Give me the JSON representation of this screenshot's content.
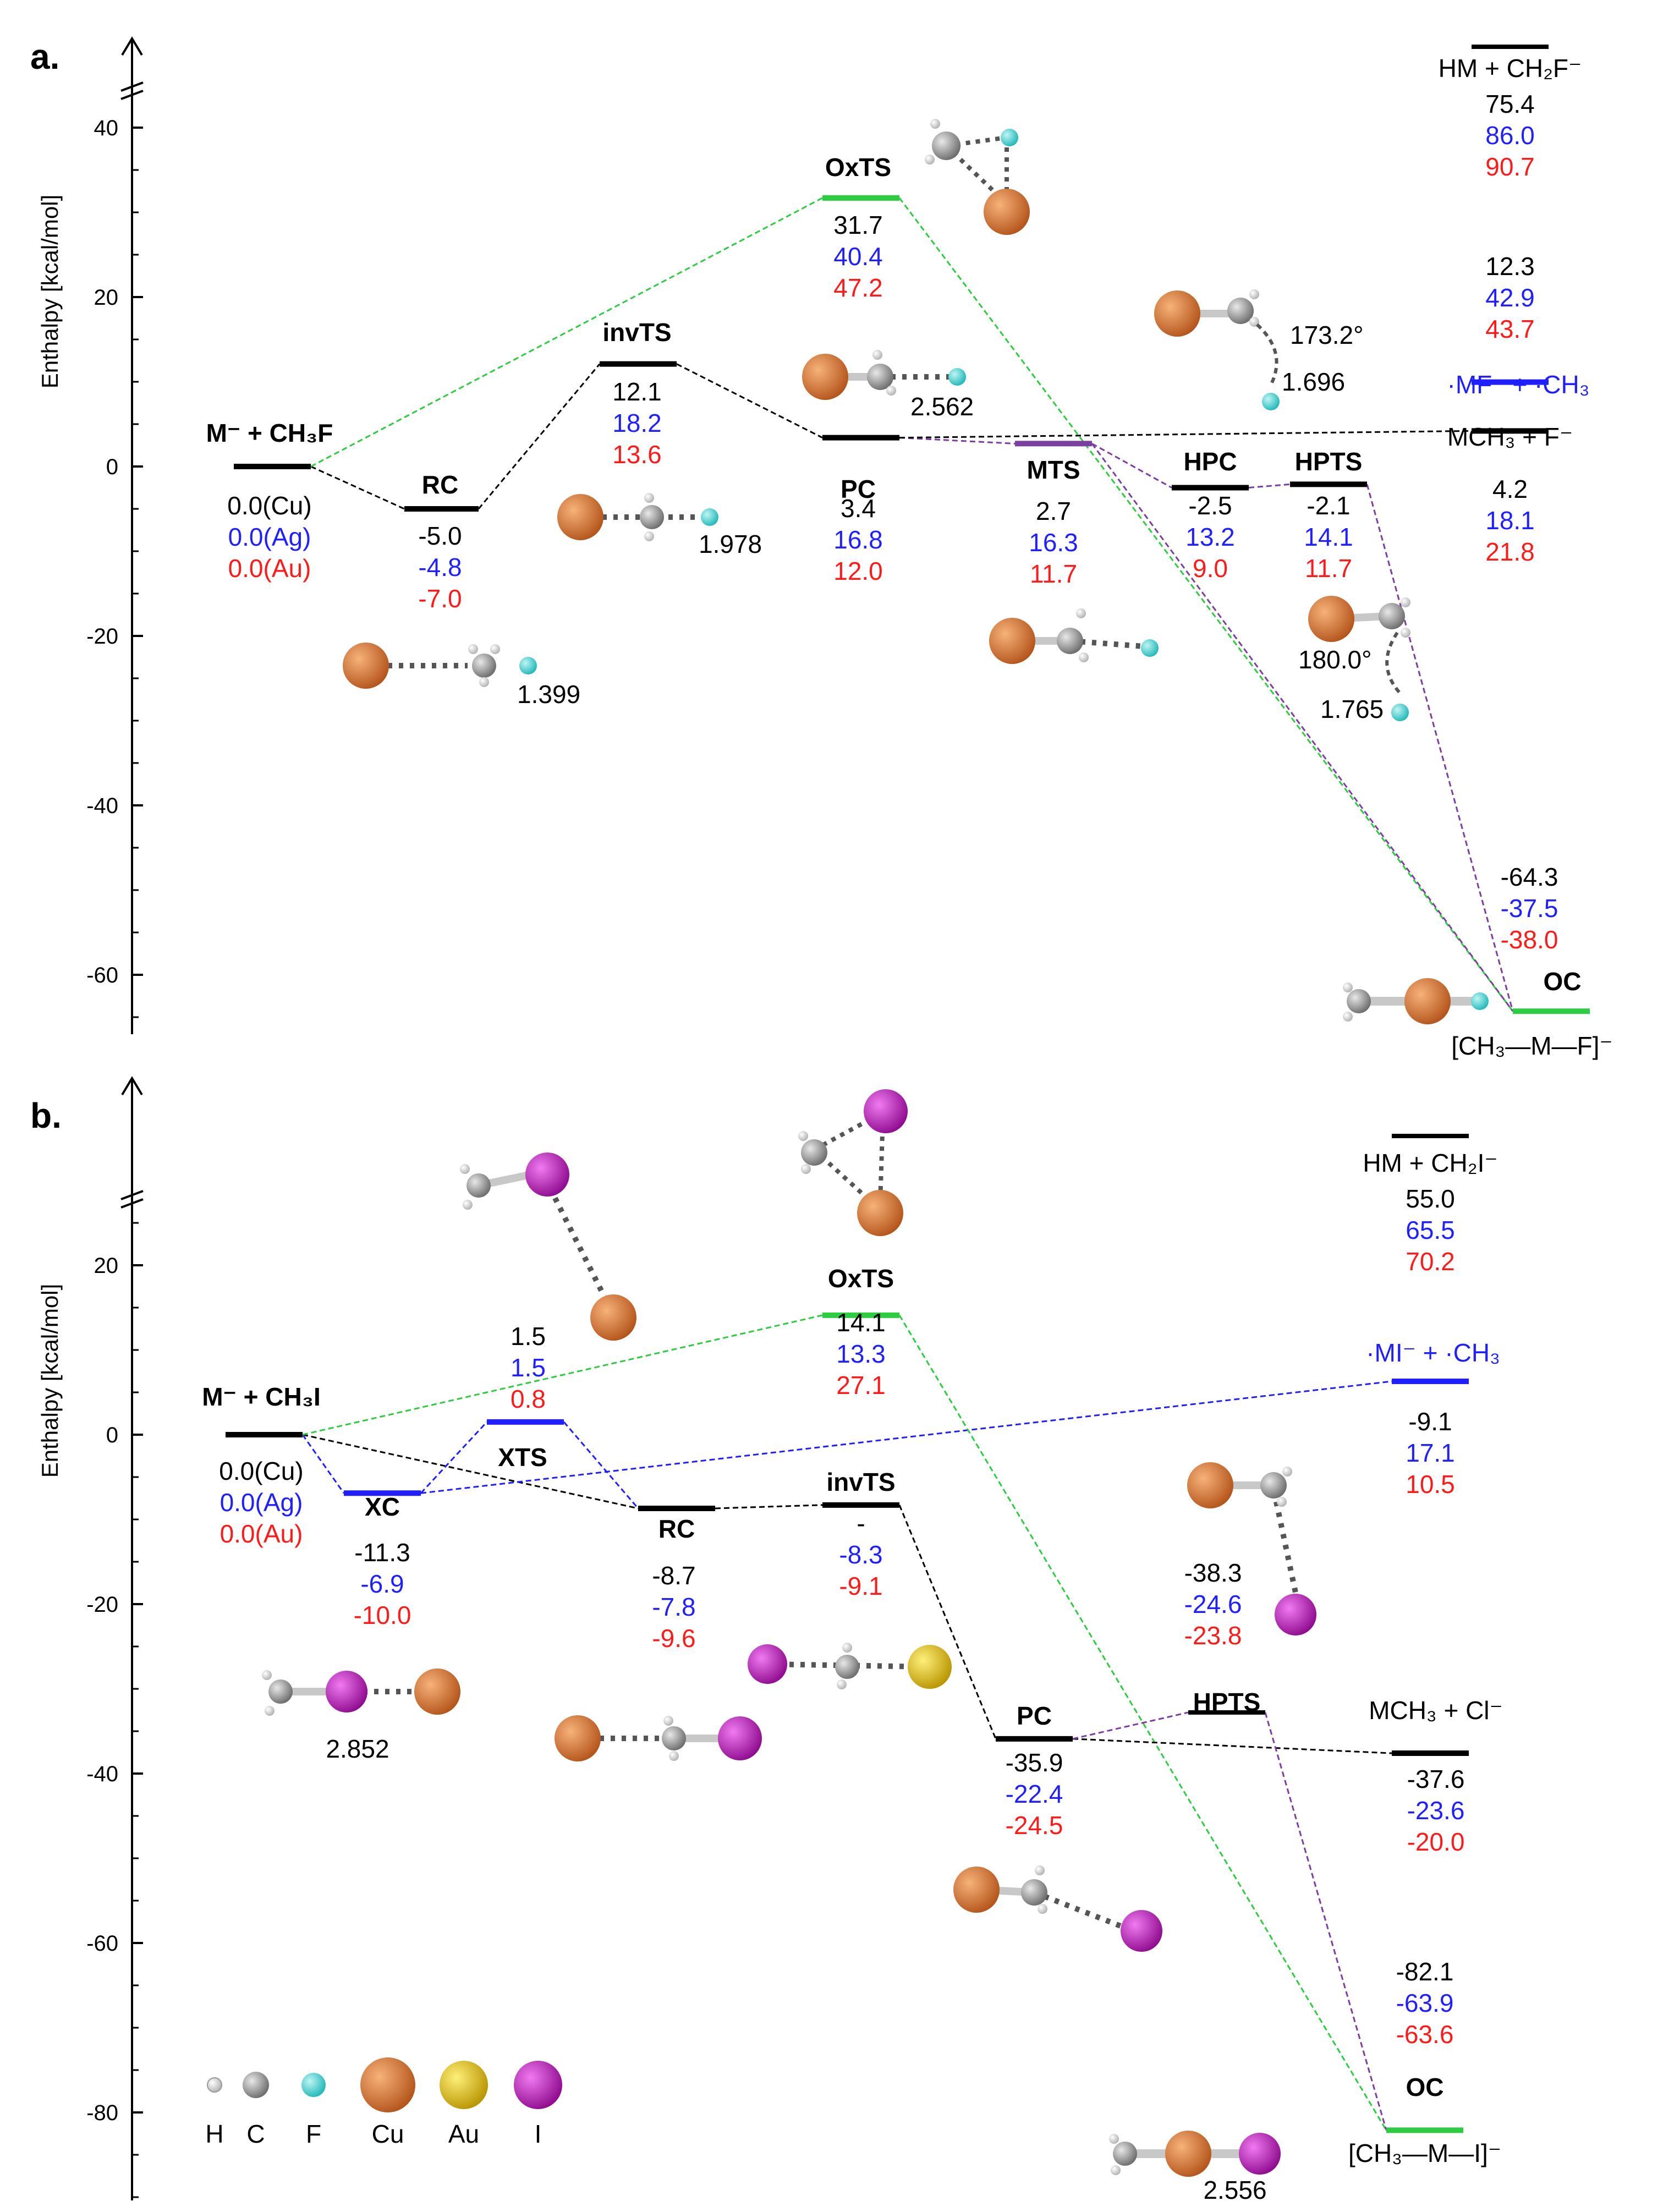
{
  "legend": [
    {
      "symbol": "H",
      "color": "#f0f0f0"
    },
    {
      "symbol": "C",
      "color": "#8a8a8a"
    },
    {
      "symbol": "F",
      "color": "#39d3d3"
    },
    {
      "symbol": "Cu",
      "color": "#e07a2e"
    },
    {
      "symbol": "Au",
      "color": "#e8c100"
    },
    {
      "symbol": "I",
      "color": "#c60bc6"
    }
  ],
  "colors": {
    "cu": "#000000",
    "ag": "#1f1fff",
    "au": "#ff1a1a",
    "green": "#2ecc40",
    "purple": "#7a3fa0",
    "blue": "#1f1fff"
  },
  "chart_data": [
    {
      "type": "energy-diagram",
      "panel_label": "a.",
      "ylabel": "Enthalpy [kcal/mol]",
      "yticks": [
        "40",
        "20",
        "0",
        "-20",
        "-40",
        "-60"
      ],
      "ylim": [
        -67,
        45
      ],
      "axis_break": true,
      "species": [
        {
          "id": "start",
          "label": "M⁻ + CH₃F",
          "values": [
            "0.0(Cu)",
            "0.0(Ag)",
            "0.0(Au)"
          ]
        },
        {
          "id": "rc",
          "label": "RC",
          "values": [
            "-5.0",
            "-4.8",
            "-7.0"
          ]
        },
        {
          "id": "invts",
          "label": "invTS",
          "values": [
            "12.1",
            "18.2",
            "13.6"
          ]
        },
        {
          "id": "oxts",
          "label": "OxTS",
          "values": [
            "31.7",
            "40.4",
            "47.2"
          ]
        },
        {
          "id": "pc",
          "label": "PC",
          "values": [
            "3.4",
            "16.8",
            "12.0"
          ]
        },
        {
          "id": "mts",
          "label": "MTS",
          "values": [
            "2.7",
            "16.3",
            "11.7"
          ]
        },
        {
          "id": "hpc",
          "label": "HPC",
          "values": [
            "-2.5",
            "13.2",
            "9.0"
          ]
        },
        {
          "id": "hpts",
          "label": "HPTS",
          "values": [
            "-2.1",
            "14.1",
            "11.7"
          ]
        },
        {
          "id": "hm",
          "label": "HM + CH₂F⁻",
          "values": [
            "75.4",
            "86.0",
            "90.7"
          ]
        },
        {
          "id": "mf",
          "label": "·MF⁻ + ·CH₃",
          "values": [
            "12.3",
            "42.9",
            "43.7"
          ]
        },
        {
          "id": "mch3",
          "label": "MCH₃ + F⁻",
          "values": [
            "4.2",
            "18.1",
            "21.8"
          ]
        },
        {
          "id": "oc",
          "label": "OC",
          "values": [
            "-64.3",
            "-37.5",
            "-38.0"
          ]
        }
      ],
      "annotations": [
        "1.399",
        "1.978",
        "2.562",
        "173.2°",
        "1.696",
        "180.0°",
        "1.765",
        "[CH₃—M—F]⁻"
      ]
    },
    {
      "type": "energy-diagram",
      "panel_label": "b.",
      "ylabel": "Enthalpy [kcal/mol]",
      "yticks": [
        "20",
        "0",
        "-20",
        "-40",
        "-60",
        "-80"
      ],
      "ylim": [
        -85,
        35
      ],
      "axis_break": true,
      "species": [
        {
          "id": "start",
          "label": "M⁻ + CH₃I",
          "values": [
            "0.0(Cu)",
            "0.0(Ag)",
            "0.0(Au)"
          ]
        },
        {
          "id": "xc",
          "label": "XC",
          "values": [
            "-11.3",
            "-6.9",
            "-10.0"
          ]
        },
        {
          "id": "xts",
          "label": "XTS",
          "values": [
            "1.5",
            "1.5",
            "0.8"
          ]
        },
        {
          "id": "rc",
          "label": "RC",
          "values": [
            "-8.7",
            "-7.8",
            "-9.6"
          ]
        },
        {
          "id": "invts",
          "label": "invTS",
          "values": [
            "-",
            "-8.3",
            "-9.1"
          ]
        },
        {
          "id": "oxts",
          "label": "OxTS",
          "values": [
            "14.1",
            "13.3",
            "27.1"
          ]
        },
        {
          "id": "pc",
          "label": "PC",
          "values": [
            "-35.9",
            "-22.4",
            "-24.5"
          ]
        },
        {
          "id": "hpts",
          "label": "HPTS",
          "values": [
            "-38.3",
            "-24.6",
            "-23.8"
          ]
        },
        {
          "id": "hm",
          "label": "HM + CH₂I⁻",
          "values": [
            "55.0",
            "65.5",
            "70.2"
          ]
        },
        {
          "id": "mi",
          "label": "·MI⁻ + ·CH₃",
          "values": [
            "-9.1",
            "17.1",
            "10.5"
          ]
        },
        {
          "id": "mch3",
          "label": "MCH₃ + Cl⁻",
          "values": [
            "-37.6",
            "-23.6",
            "-20.0"
          ]
        },
        {
          "id": "oc",
          "label": "OC",
          "values": [
            "-82.1",
            "-63.9",
            "-63.6"
          ]
        }
      ],
      "annotations": [
        "2.852",
        "2.556",
        "[CH₃—M—I]⁻"
      ]
    }
  ]
}
